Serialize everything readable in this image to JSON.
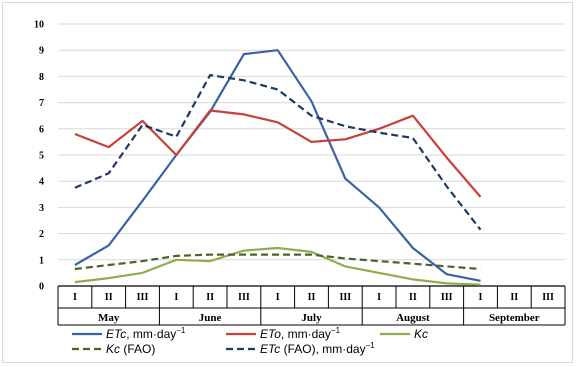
{
  "chart_data": {
    "type": "line",
    "categories": [
      "I",
      "II",
      "III",
      "I",
      "II",
      "III",
      "I",
      "II",
      "III",
      "I",
      "II",
      "III",
      "I",
      "II",
      "III"
    ],
    "months": [
      {
        "label": "May",
        "span": [
          0,
          2
        ]
      },
      {
        "label": "June",
        "span": [
          3,
          5
        ]
      },
      {
        "label": "July",
        "span": [
          6,
          8
        ]
      },
      {
        "label": "August",
        "span": [
          9,
          11
        ]
      },
      {
        "label": "September",
        "span": [
          12,
          14
        ]
      }
    ],
    "ylim": [
      0,
      10
    ],
    "yticks": [
      0,
      1,
      2,
      3,
      4,
      5,
      6,
      7,
      8,
      9,
      10
    ],
    "grid": "horizontal",
    "legend_position": "bottom",
    "series": [
      {
        "name_italic": "ETc",
        "name_rest": ", mm·day",
        "name_sup": "−1",
        "color": "#3a62a6",
        "dash": "solid",
        "values": [
          0.8,
          1.55,
          3.25,
          5.0,
          6.65,
          8.85,
          9.0,
          7.05,
          4.1,
          3.0,
          1.45,
          0.45,
          0.2,
          null,
          null
        ]
      },
      {
        "name_italic": "ETo",
        "name_rest": ", mm·day",
        "name_sup": "−1",
        "color": "#c8403a",
        "dash": "solid",
        "values": [
          5.8,
          5.3,
          6.3,
          5.0,
          6.7,
          6.55,
          6.25,
          5.5,
          5.6,
          6.0,
          6.5,
          4.9,
          3.4,
          null,
          null
        ]
      },
      {
        "name_italic": "Kc",
        "name_rest": "",
        "name_sup": "",
        "color": "#8fad4f",
        "dash": "solid",
        "values": [
          0.15,
          0.3,
          0.5,
          1.0,
          0.95,
          1.35,
          1.45,
          1.3,
          0.75,
          0.5,
          0.25,
          0.1,
          0.05,
          null,
          null
        ]
      },
      {
        "name_italic": "Kc",
        "name_rest": " (FAO)",
        "name_sup": "",
        "color": "#4e6228",
        "dash": "dashed",
        "values": [
          0.65,
          0.8,
          0.95,
          1.15,
          1.2,
          1.2,
          1.2,
          1.2,
          1.05,
          0.95,
          0.85,
          0.75,
          0.65,
          null,
          null
        ]
      },
      {
        "name_italic": "ETc",
        "name_rest": " (FAO), mm·day",
        "name_sup": "−1",
        "color": "#1f3864",
        "dash": "dashed",
        "values": [
          3.75,
          4.3,
          6.15,
          5.7,
          8.05,
          7.85,
          7.5,
          6.5,
          6.1,
          5.85,
          5.65,
          3.8,
          2.15,
          null,
          null
        ]
      }
    ]
  }
}
